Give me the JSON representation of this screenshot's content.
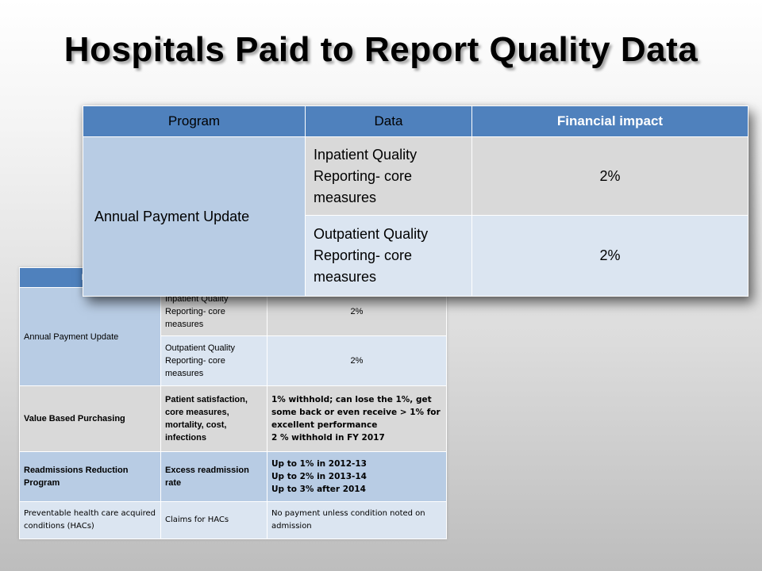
{
  "title": "Hospitals Paid to Report Quality Data",
  "foreground_table": {
    "headers": [
      "Program",
      "Data",
      "Financial impact"
    ],
    "rows": [
      {
        "program": "Annual Payment Update",
        "data": "Inpatient Quality Reporting- core measures",
        "impact": "2%"
      },
      {
        "program": "",
        "data": "Outpatient Quality Reporting- core measures",
        "impact": "2%"
      }
    ]
  },
  "background_table": {
    "header_visible": "Pro",
    "rows": [
      {
        "program": "Annual Payment Update",
        "data": "Inpatient Quality Reporting- core measures",
        "impact": "2%"
      },
      {
        "program": "",
        "data": "Outpatient Quality Reporting- core measures",
        "impact": "2%"
      },
      {
        "program": "Value Based Purchasing",
        "data": "Patient satisfaction, core measures, mortality, cost, infections",
        "impact_lines": [
          "1% withhold; can lose the 1%, get some back or even receive > 1% for excellent performance",
          "2 % withhold in FY 2017"
        ]
      },
      {
        "program": "Readmissions Reduction Program",
        "data": "Excess readmission rate",
        "impact_lines": [
          "Up to 1% in 2012-13",
          "Up to 2% in 2013-14",
          "Up to 3% after 2014"
        ]
      },
      {
        "program": "Preventable health care acquired conditions (HACs)",
        "data": "Claims for HACs",
        "impact_lines": [
          "No payment unless condition noted on admission"
        ]
      }
    ]
  },
  "colors": {
    "header_blue": "#4f81bd",
    "program_cell": "#b8cce4",
    "gray_cell": "#d9d9d9",
    "light_cell": "#dbe5f1"
  }
}
